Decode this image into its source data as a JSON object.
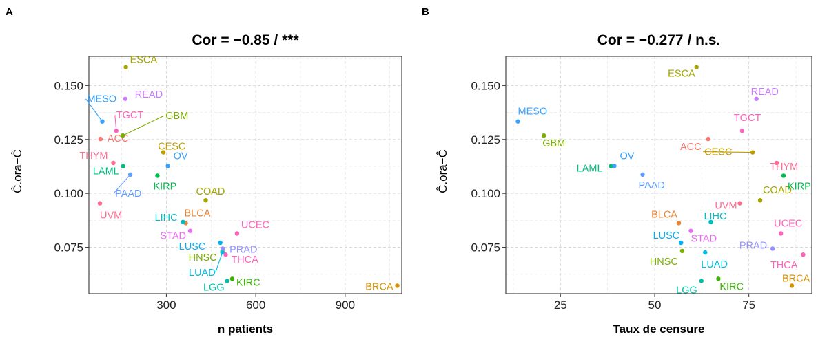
{
  "colors": {
    "ACC": "#F8766D",
    "BLCA": "#EA8331",
    "BRCA": "#D89000",
    "CESC": "#C09B00",
    "COAD": "#A3A500",
    "ESCA": "#A3A500",
    "GBM": "#7CAE00",
    "HNSC": "#7CAE00",
    "KIRC": "#39B600",
    "KIRP": "#00BB4E",
    "LAML": "#00BF7D",
    "LGG": "#00C1A3",
    "LIHC": "#00BFC4",
    "LUAD": "#00BAE0",
    "LUSC": "#00B0F6",
    "MESO": "#35A2FF",
    "OV": "#35A2FF",
    "PAAD": "#619CFF",
    "PRAD": "#9590FF",
    "READ": "#C77CFF",
    "STAD": "#E76BF3",
    "TGCT": "#FF62BC",
    "THCA": "#FF62BC",
    "THYM": "#FF6C91",
    "UCEC": "#FF62BC",
    "UVM": "#FF6C91"
  },
  "chart_data": [
    {
      "type": "scatter",
      "panel": "A",
      "title": "Cor = −0.85 / ***",
      "xlabel": "n patients",
      "ylabel": "Ĉ.ora−Ĉ",
      "xlim": [
        40,
        1090
      ],
      "ylim": [
        0.0535,
        0.1635
      ],
      "xticks": [
        300,
        600,
        900
      ],
      "yticks": [
        0.075,
        0.1,
        0.125,
        0.15
      ],
      "ytick_labels": [
        "0.075",
        "0.100",
        "0.125",
        "0.150"
      ],
      "grid": true,
      "legend": "none",
      "points": [
        {
          "label": "ACC",
          "x": 79,
          "y": 0.1252
        },
        {
          "label": "BLCA",
          "x": 365,
          "y": 0.0862
        },
        {
          "label": "BRCA",
          "x": 1075,
          "y": 0.0572
        },
        {
          "label": "CESC",
          "x": 290,
          "y": 0.119
        },
        {
          "label": "COAD",
          "x": 432,
          "y": 0.0968
        },
        {
          "label": "ESCA",
          "x": 164,
          "y": 0.1585
        },
        {
          "label": "GBM",
          "x": 154,
          "y": 0.1268
        },
        {
          "label": "HNSC",
          "x": 488,
          "y": 0.0733
        },
        {
          "label": "KIRC",
          "x": 521,
          "y": 0.0604
        },
        {
          "label": "KIRP",
          "x": 270,
          "y": 0.1082
        },
        {
          "label": "LAML",
          "x": 155,
          "y": 0.1126
        },
        {
          "label": "LGG",
          "x": 504,
          "y": 0.0594
        },
        {
          "label": "LIHC",
          "x": 356,
          "y": 0.0867
        },
        {
          "label": "LUAD",
          "x": 488,
          "y": 0.0726
        },
        {
          "label": "LUSC",
          "x": 481,
          "y": 0.0771
        },
        {
          "label": "MESO",
          "x": 85,
          "y": 0.1333
        },
        {
          "label": "OV",
          "x": 305,
          "y": 0.1127
        },
        {
          "label": "PAAD",
          "x": 179,
          "y": 0.1087
        },
        {
          "label": "PRAD",
          "x": 489,
          "y": 0.0744
        },
        {
          "label": "READ",
          "x": 162,
          "y": 0.1438
        },
        {
          "label": "STAD",
          "x": 380,
          "y": 0.0826
        },
        {
          "label": "TGCT",
          "x": 132,
          "y": 0.129
        },
        {
          "label": "THCA",
          "x": 499,
          "y": 0.0716
        },
        {
          "label": "THYM",
          "x": 122,
          "y": 0.1141
        },
        {
          "label": "UCEC",
          "x": 537,
          "y": 0.0814
        },
        {
          "label": "UVM",
          "x": 77,
          "y": 0.0954
        }
      ]
    },
    {
      "type": "scatter",
      "panel": "B",
      "title": "Cor = −0.277 / n.s.",
      "xlabel": "Taux de censure",
      "ylabel": "Ĉ.ora−Ĉ",
      "xlim": [
        10.5,
        91.7
      ],
      "ylim": [
        0.0535,
        0.1635
      ],
      "xticks": [
        25,
        50,
        75
      ],
      "yticks": [
        0.075,
        0.1,
        0.125,
        0.15
      ],
      "ytick_labels": [
        "0.075",
        "0.100",
        "0.125",
        "0.150"
      ],
      "grid": true,
      "legend": "none",
      "points": [
        {
          "label": "ACC",
          "x": 64.2,
          "y": 0.1252
        },
        {
          "label": "BLCA",
          "x": 56.4,
          "y": 0.0862
        },
        {
          "label": "BRCA",
          "x": 86.4,
          "y": 0.0572
        },
        {
          "label": "CESC",
          "x": 76.0,
          "y": 0.119
        },
        {
          "label": "COAD",
          "x": 78.0,
          "y": 0.0968
        },
        {
          "label": "ESCA",
          "x": 61.1,
          "y": 0.1585
        },
        {
          "label": "GBM",
          "x": 20.6,
          "y": 0.1268
        },
        {
          "label": "HNSC",
          "x": 57.3,
          "y": 0.0733
        },
        {
          "label": "KIRC",
          "x": 66.9,
          "y": 0.0604
        },
        {
          "label": "KIRP",
          "x": 84.2,
          "y": 0.1082
        },
        {
          "label": "LAML",
          "x": 38.4,
          "y": 0.1126
        },
        {
          "label": "LGG",
          "x": 62.4,
          "y": 0.0594
        },
        {
          "label": "LIHC",
          "x": 64.9,
          "y": 0.0867
        },
        {
          "label": "LUAD",
          "x": 63.4,
          "y": 0.0726
        },
        {
          "label": "LUSC",
          "x": 57.0,
          "y": 0.0771
        },
        {
          "label": "MESO",
          "x": 13.7,
          "y": 0.1333
        },
        {
          "label": "OV",
          "x": 39.3,
          "y": 0.1127
        },
        {
          "label": "PAAD",
          "x": 46.8,
          "y": 0.1087
        },
        {
          "label": "PRAD",
          "x": 81.3,
          "y": 0.0744
        },
        {
          "label": "READ",
          "x": 77.0,
          "y": 0.1438
        },
        {
          "label": "STAD",
          "x": 59.6,
          "y": 0.0826
        },
        {
          "label": "TGCT",
          "x": 73.2,
          "y": 0.129
        },
        {
          "label": "THCA",
          "x": 89.4,
          "y": 0.0716
        },
        {
          "label": "THYM",
          "x": 82.4,
          "y": 0.1141
        },
        {
          "label": "UCEC",
          "x": 83.5,
          "y": 0.0814
        },
        {
          "label": "UVM",
          "x": 72.6,
          "y": 0.0954
        }
      ]
    }
  ]
}
